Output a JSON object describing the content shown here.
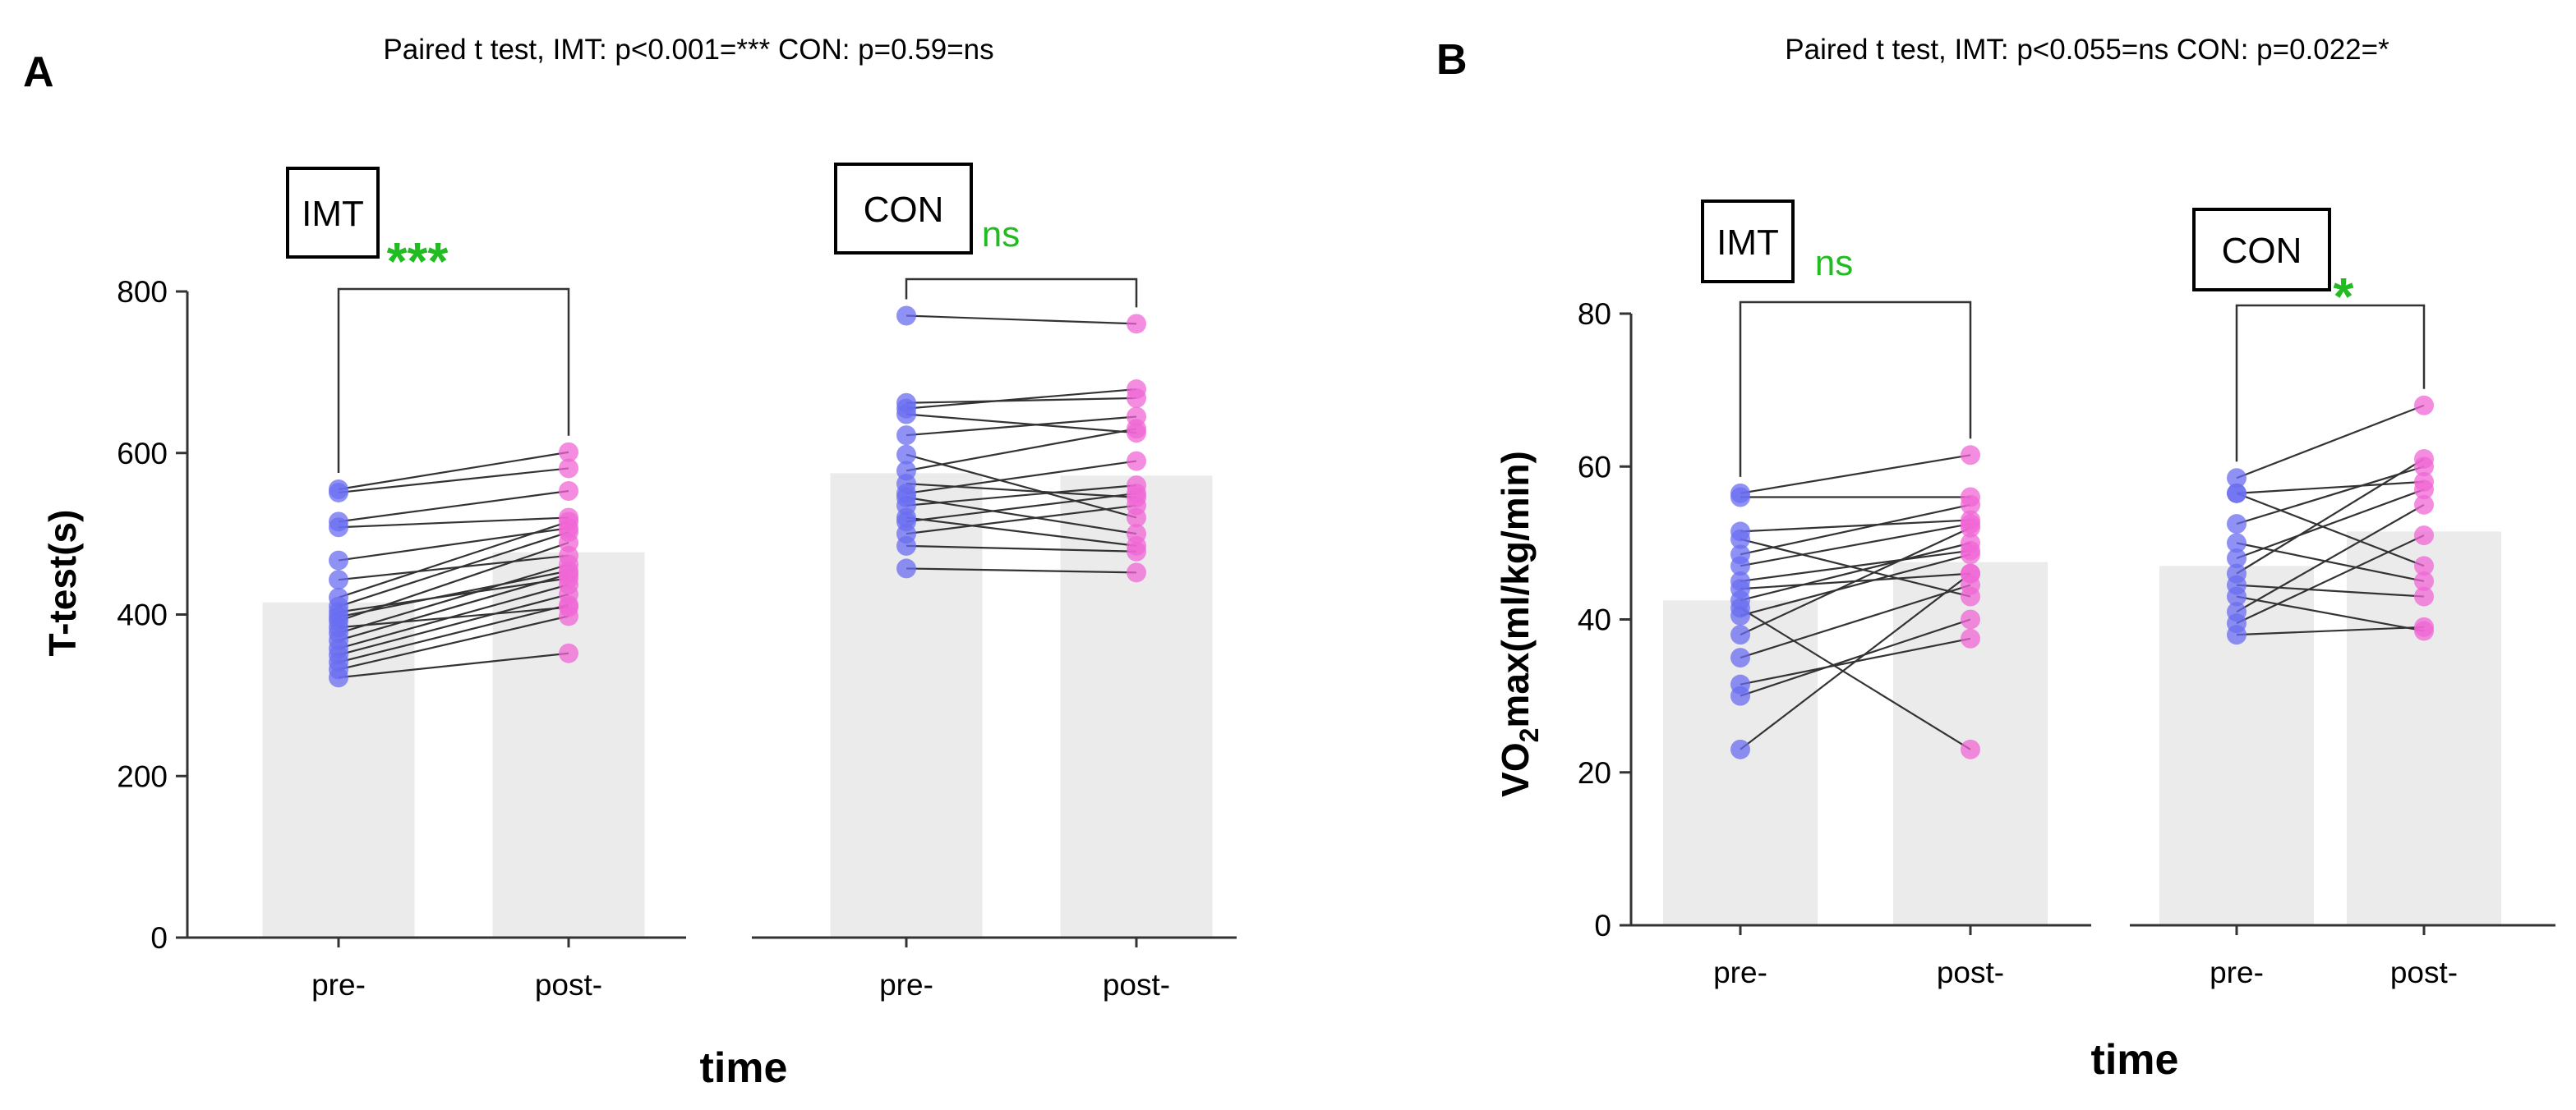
{
  "colors": {
    "pre": "#6a6ef0",
    "post": "#f067d6",
    "bar": "#ebebeb",
    "line": "#333333",
    "sig": "#22bb22"
  },
  "xlabel": "time",
  "chart_data": [
    {
      "type": "bar",
      "panel": "A",
      "title": "Paired t test, IMT: p<0.001=*** CON: p=0.59=ns",
      "ylabel": "T-test(s)",
      "ylabel_sub": "",
      "ylabel_rest": "",
      "xlabel": "time",
      "ylim": [
        0,
        800
      ],
      "yticks": [
        "0",
        "200",
        "400",
        "600",
        "800"
      ],
      "categories": [
        "pre-",
        "post-"
      ],
      "groups": [
        {
          "name": "IMT",
          "significance": "***",
          "means": [
            415,
            477
          ],
          "pairs": [
            [
              322,
              352
            ],
            [
              332,
              398
            ],
            [
              341,
              412
            ],
            [
              350,
              425
            ],
            [
              358,
              437
            ],
            [
              368,
              450
            ],
            [
              377,
              462
            ],
            [
              384,
              409
            ],
            [
              392,
              489
            ],
            [
              397,
              454
            ],
            [
              403,
              445
            ],
            [
              410,
              502
            ],
            [
              421,
              515
            ],
            [
              443,
              473
            ],
            [
              467,
              507
            ],
            [
              508,
              520
            ],
            [
              515,
              553
            ],
            [
              551,
              581
            ],
            [
              555,
              601
            ]
          ]
        },
        {
          "name": "CON",
          "significance": "ns",
          "means": [
            575,
            572
          ],
          "pairs": [
            [
              457,
              452
            ],
            [
              485,
              478
            ],
            [
              500,
              535
            ],
            [
              515,
              550
            ],
            [
              520,
              485
            ],
            [
              535,
              560
            ],
            [
              545,
              500
            ],
            [
              550,
              590
            ],
            [
              562,
              545
            ],
            [
              578,
              630
            ],
            [
              598,
              520
            ],
            [
              622,
              645
            ],
            [
              648,
              625
            ],
            [
              655,
              679
            ],
            [
              662,
              668
            ],
            [
              770,
              760
            ]
          ]
        }
      ]
    },
    {
      "type": "bar",
      "panel": "B",
      "title": "Paired t test, IMT: p<0.055=ns CON: p=0.022=*",
      "ylabel": "VO",
      "ylabel_sub": "2",
      "ylabel_rest": "max(ml/kg/min)",
      "xlabel": "time",
      "ylim": [
        0,
        80
      ],
      "yticks": [
        "0",
        "20",
        "40",
        "60",
        "80"
      ],
      "categories": [
        "pre-",
        "post-"
      ],
      "groups": [
        {
          "name": "IMT",
          "significance": "ns",
          "means": [
            42.5,
            47.5
          ],
          "pairs": [
            [
              23,
              46
            ],
            [
              30,
              40
            ],
            [
              31.5,
              37.5
            ],
            [
              35,
              44.5
            ],
            [
              38,
              52
            ],
            [
              40.5,
              48.5
            ],
            [
              41.5,
              23
            ],
            [
              42.5,
              50
            ],
            [
              44,
              46
            ],
            [
              45,
              49
            ],
            [
              47,
              52.5
            ],
            [
              48.5,
              55
            ],
            [
              50.5,
              43
            ],
            [
              51.5,
              53
            ],
            [
              56,
              56
            ],
            [
              56.5,
              61.5
            ]
          ]
        },
        {
          "name": "CON",
          "significance": "*",
          "means": [
            47,
            51.5
          ],
          "pairs": [
            [
              38,
              39
            ],
            [
              39.5,
              51
            ],
            [
              41,
              55
            ],
            [
              43,
              38.5
            ],
            [
              44.5,
              43
            ],
            [
              46,
              61
            ],
            [
              48,
              57
            ],
            [
              50,
              45
            ],
            [
              52.5,
              60
            ],
            [
              56.5,
              47
            ],
            [
              56.5,
              58
            ],
            [
              58.5,
              68
            ]
          ]
        }
      ]
    }
  ]
}
